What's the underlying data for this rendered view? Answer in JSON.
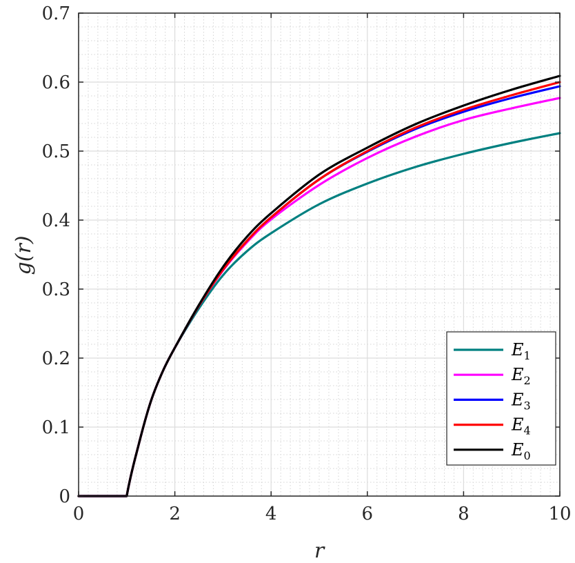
{
  "chart_data": {
    "type": "line",
    "xlabel": "r",
    "ylabel": "g(r)",
    "xlim": [
      0,
      10
    ],
    "ylim": [
      0,
      0.7
    ],
    "xticks": [
      "0",
      "2",
      "4",
      "6",
      "8",
      "10"
    ],
    "yticks": [
      "0",
      "0.1",
      "0.2",
      "0.3",
      "0.4",
      "0.5",
      "0.6",
      "0.7"
    ],
    "grid": "major and minor",
    "legend_position": "bottom-right",
    "x": [
      0,
      0.5,
      1.0,
      1.25,
      1.5,
      1.75,
      2.0,
      2.5,
      3.0,
      3.5,
      4.0,
      5.0,
      6.0,
      7.0,
      8.0,
      9.0,
      10.0
    ],
    "series": [
      {
        "name": "E",
        "subscript": "1",
        "color": "#008080",
        "values": [
          0,
          0,
          0,
          0.075,
          0.137,
          0.181,
          0.215,
          0.272,
          0.32,
          0.355,
          0.381,
          0.423,
          0.453,
          0.477,
          0.496,
          0.512,
          0.526
        ]
      },
      {
        "name": "E",
        "subscript": "2",
        "color": "#ff00ff",
        "values": [
          0,
          0,
          0,
          0.075,
          0.137,
          0.181,
          0.215,
          0.276,
          0.327,
          0.368,
          0.401,
          0.451,
          0.49,
          0.521,
          0.545,
          0.562,
          0.577
        ]
      },
      {
        "name": "E",
        "subscript": "3",
        "color": "#0000ff",
        "values": [
          0,
          0,
          0,
          0.075,
          0.137,
          0.181,
          0.215,
          0.276,
          0.328,
          0.37,
          0.404,
          0.459,
          0.499,
          0.532,
          0.557,
          0.577,
          0.594
        ]
      },
      {
        "name": "E",
        "subscript": "4",
        "color": "#ff0000",
        "values": [
          0,
          0,
          0,
          0.075,
          0.137,
          0.181,
          0.215,
          0.276,
          0.328,
          0.37,
          0.404,
          0.459,
          0.5,
          0.534,
          0.56,
          0.581,
          0.6
        ]
      },
      {
        "name": "E",
        "subscript": "0",
        "color": "#000000",
        "values": [
          0,
          0,
          0,
          0.075,
          0.137,
          0.181,
          0.215,
          0.277,
          0.332,
          0.376,
          0.41,
          0.466,
          0.505,
          0.539,
          0.566,
          0.589,
          0.609
        ]
      }
    ]
  }
}
